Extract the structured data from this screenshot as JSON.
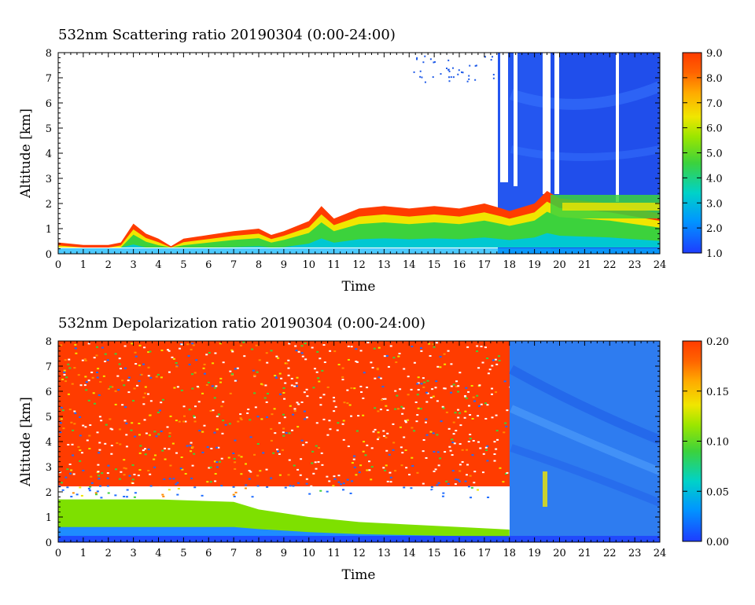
{
  "chart_data": [
    {
      "type": "heatmap",
      "title": "532nm Scattering ratio  20190304 (0:00-24:00)",
      "xlabel": "Time",
      "ylabel": "Altitude [km]",
      "xlim": [
        0,
        24
      ],
      "ylim": [
        0,
        8
      ],
      "x_ticks": [
        "0",
        "1",
        "2",
        "3",
        "4",
        "5",
        "6",
        "7",
        "8",
        "9",
        "10",
        "11",
        "12",
        "13",
        "14",
        "15",
        "16",
        "17",
        "18",
        "19",
        "20",
        "21",
        "22",
        "23",
        "24"
      ],
      "y_ticks": [
        "0",
        "1",
        "2",
        "3",
        "4",
        "5",
        "6",
        "7",
        "8"
      ],
      "colorbar": {
        "range": [
          1.0,
          9.0
        ],
        "ticks": [
          "1.0",
          "2.0",
          "3.0",
          "4.0",
          "5.0",
          "6.0",
          "7.0",
          "8.0",
          "9.0"
        ],
        "colormap": [
          "#1e3cff",
          "#00b4ff",
          "#00e08c",
          "#5ad23c",
          "#e6e600",
          "#ff8c00",
          "#ff3c00"
        ]
      },
      "features": {
        "boundary_layer_top_km": [
          [
            0,
            0.45
          ],
          [
            1,
            0.35
          ],
          [
            2,
            0.35
          ],
          [
            2.5,
            0.45
          ],
          [
            3,
            1.2
          ],
          [
            3.5,
            0.8
          ],
          [
            4,
            0.6
          ],
          [
            4.5,
            0.3
          ],
          [
            5,
            0.6
          ],
          [
            6,
            0.75
          ],
          [
            7,
            0.9
          ],
          [
            8,
            1.0
          ],
          [
            8.5,
            0.75
          ],
          [
            9,
            0.9
          ],
          [
            10,
            1.3
          ],
          [
            10.5,
            1.9
          ],
          [
            11,
            1.4
          ],
          [
            12,
            1.8
          ],
          [
            13,
            1.9
          ],
          [
            14,
            1.8
          ],
          [
            15,
            1.9
          ],
          [
            16,
            1.8
          ],
          [
            17,
            2.0
          ],
          [
            17.7,
            1.8
          ],
          [
            18,
            1.7
          ],
          [
            19,
            2.0
          ],
          [
            19.5,
            2.5
          ],
          [
            20,
            2.2
          ],
          [
            21,
            2.1
          ],
          [
            22,
            2.0
          ],
          [
            23,
            1.8
          ],
          [
            24,
            1.6
          ]
        ],
        "upper_cloud_start_hour": 17.6,
        "cloud_gaps_hours": [
          [
            17.6,
            17.8
          ],
          [
            18.0,
            18.2
          ],
          [
            19.4,
            19.6
          ],
          [
            19.8,
            20.0
          ],
          [
            22.3,
            22.4
          ]
        ]
      }
    },
    {
      "type": "heatmap",
      "title": "532nm Depolarization ratio  20190304 (0:00-24:00)",
      "xlabel": "Time",
      "ylabel": "Altitude [km]",
      "xlim": [
        0,
        24
      ],
      "ylim": [
        0,
        8
      ],
      "x_ticks": [
        "0",
        "1",
        "2",
        "3",
        "4",
        "5",
        "6",
        "7",
        "8",
        "9",
        "10",
        "11",
        "12",
        "13",
        "14",
        "15",
        "16",
        "17",
        "18",
        "19",
        "20",
        "21",
        "22",
        "23",
        "24"
      ],
      "y_ticks": [
        "0",
        "1",
        "2",
        "3",
        "4",
        "5",
        "6",
        "7",
        "8"
      ],
      "colorbar": {
        "range": [
          0.0,
          0.2
        ],
        "ticks": [
          "0.00",
          "0.05",
          "0.10",
          "0.15",
          "0.20"
        ],
        "colormap": [
          "#1e3cff",
          "#00b4ff",
          "#00e08c",
          "#5ad23c",
          "#e6e600",
          "#ff8c00",
          "#ff3c00"
        ]
      },
      "features": {
        "dust_layer_top_km": [
          [
            0,
            1.7
          ],
          [
            4,
            1.7
          ],
          [
            7,
            1.6
          ],
          [
            8,
            1.3
          ],
          [
            10,
            1.0
          ],
          [
            12,
            0.8
          ],
          [
            16,
            0.6
          ],
          [
            18,
            0.5
          ]
        ],
        "cloud_region_start_hour": 18.0
      }
    }
  ]
}
